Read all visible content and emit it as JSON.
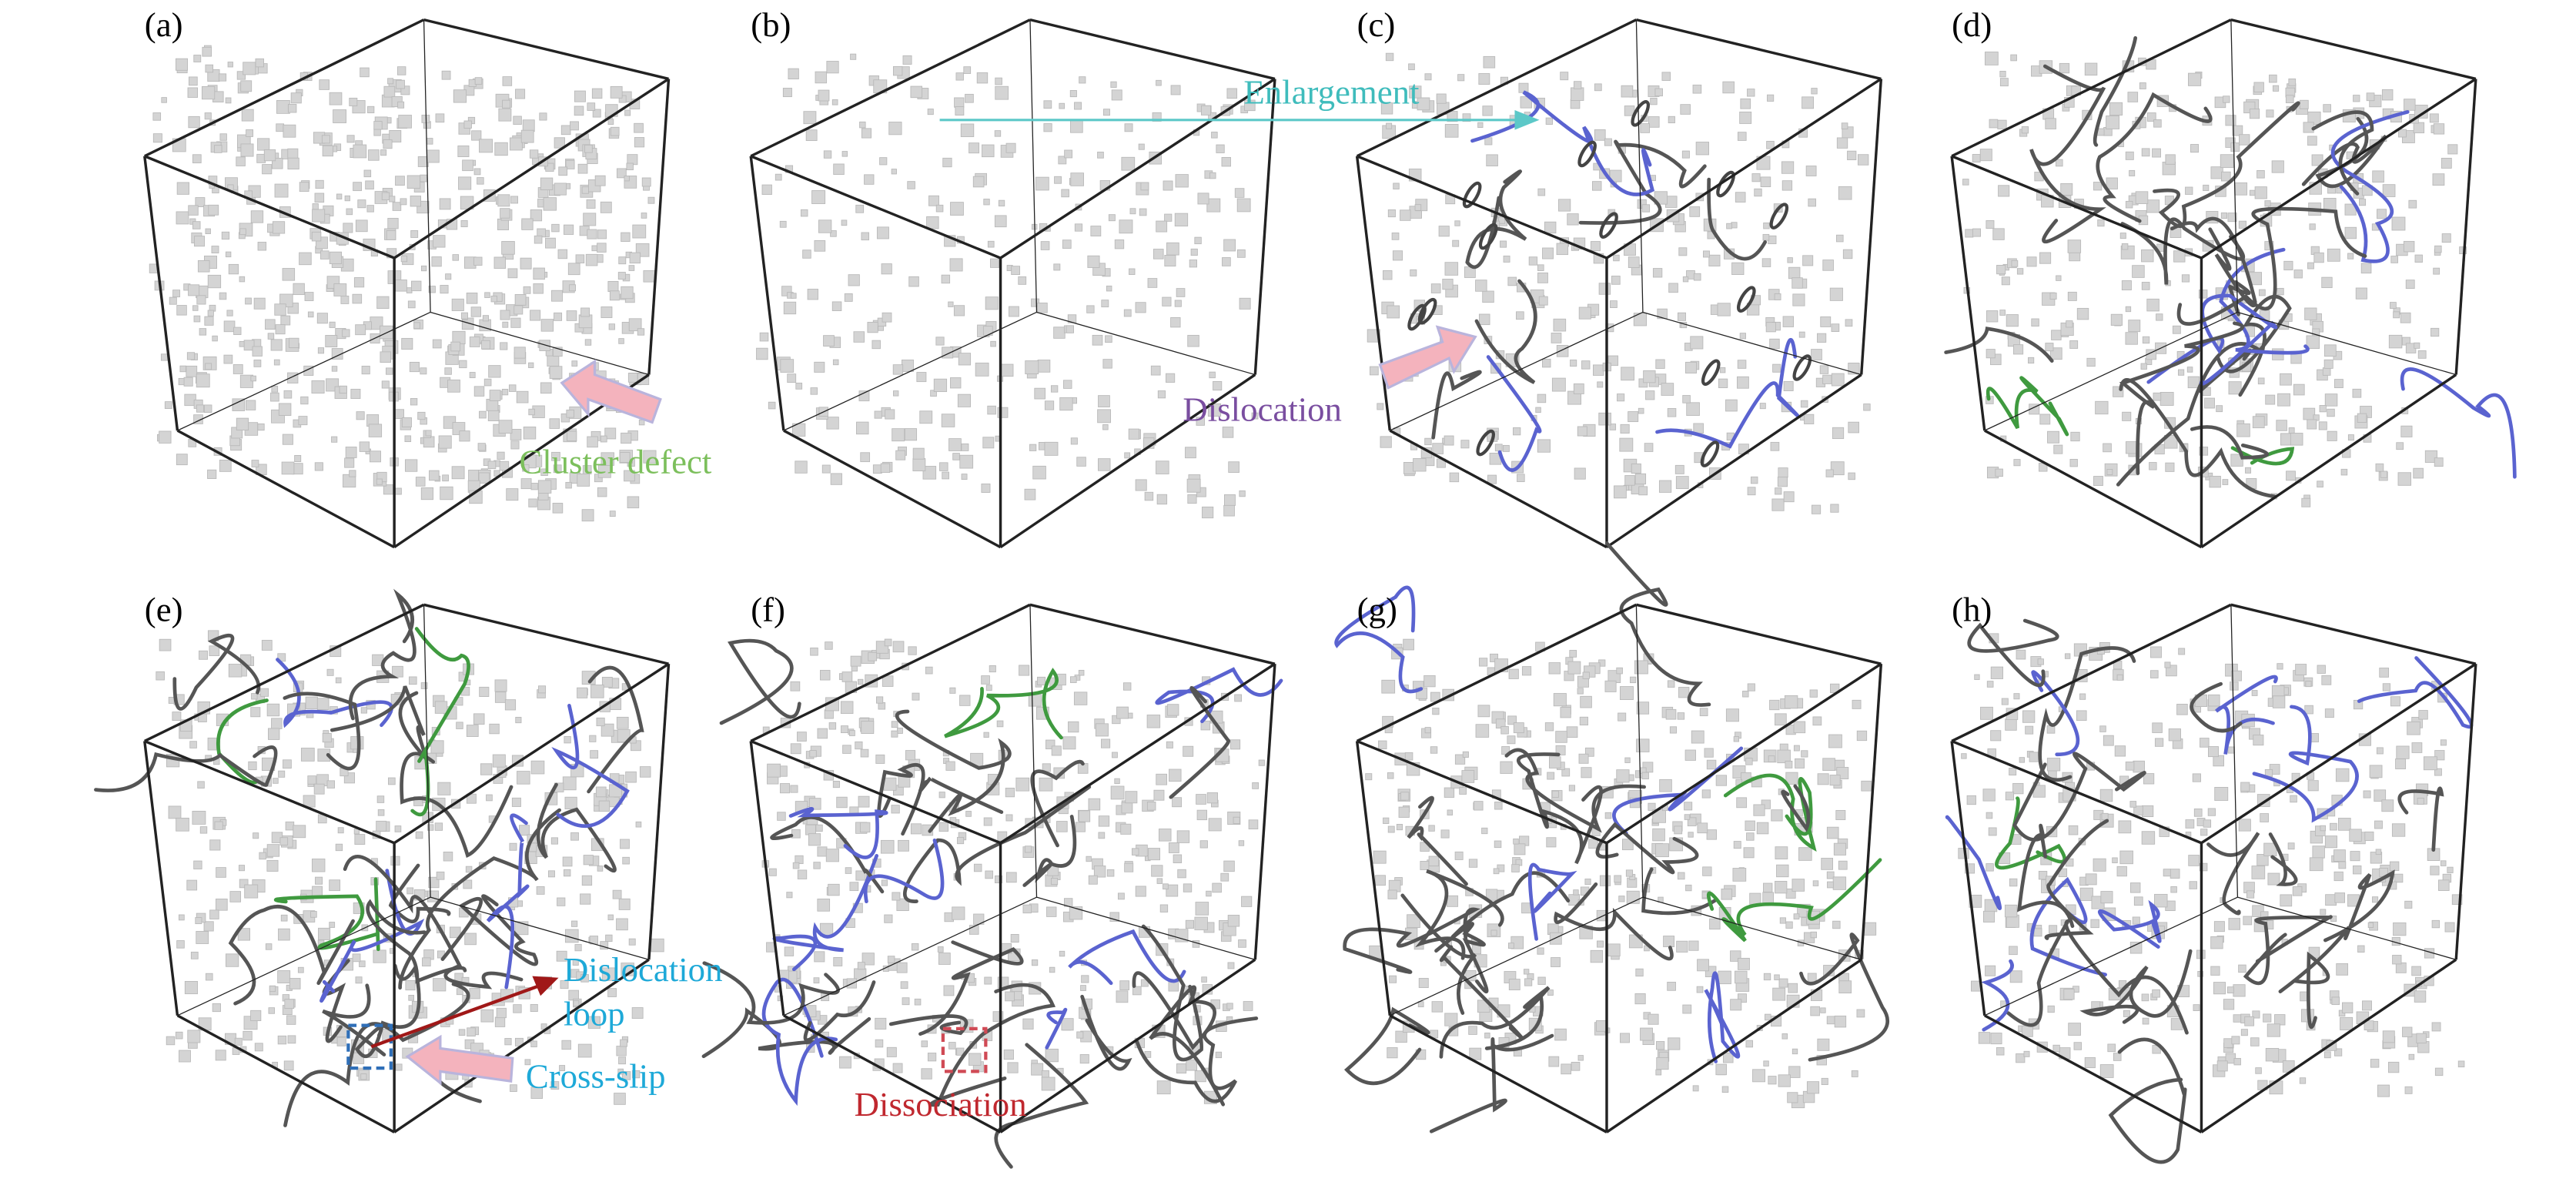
{
  "panel_labels": [
    "(a)",
    "(b)",
    "(c)",
    "(d)",
    "(e)",
    "(f)",
    "(g)",
    "(h)"
  ],
  "annotations": {
    "enlargement": "Enlargement",
    "cluster_defect": "Cluster defect",
    "dislocation": "Dislocation",
    "dislocation_loop": [
      "Dislocation",
      "loop"
    ],
    "cross_slip": "Cross-slip",
    "dissociation": "Dissociation"
  }
}
